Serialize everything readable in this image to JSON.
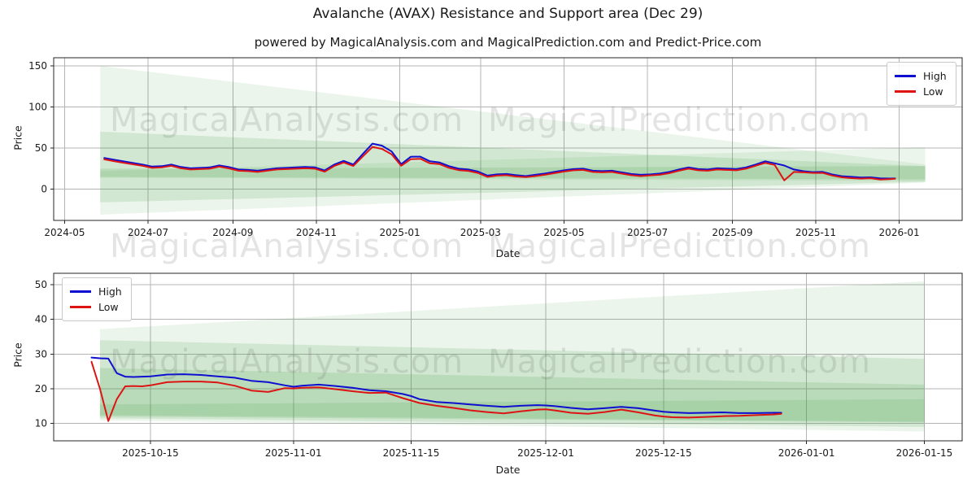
{
  "figure": {
    "title": "Avalanche (AVAX) Resistance and Support area (Dec 29)",
    "subtitle": "powered by MagicalAnalysis.com and MagicalPrediction.com and Predict-Price.com"
  },
  "legend": {
    "high": "High",
    "low": "Low"
  },
  "watermarks": {
    "left": "MagicalAnalysis.com",
    "right": "MagicalPrediction.com"
  },
  "colors": {
    "high": "#0f0fd0",
    "low": "#dd1414",
    "band": "#3a9a3a",
    "grid": "#b4b4b4",
    "spine": "#262626",
    "text": "#1a1a1a"
  },
  "chart_data": [
    {
      "type": "line",
      "name": "overview",
      "xlabel": "Date",
      "ylabel": "Price",
      "x_epoch": "2024-05-01",
      "xlim": [
        -8,
        656
      ],
      "ylim": [
        -38,
        160
      ],
      "y_ticks": [
        0,
        50,
        100,
        150
      ],
      "x_ticks": [
        {
          "d": 0,
          "label": "2024-05"
        },
        {
          "d": 61,
          "label": "2024-07"
        },
        {
          "d": 123,
          "label": "2024-09"
        },
        {
          "d": 184,
          "label": "2024-11"
        },
        {
          "d": 245,
          "label": "2025-01"
        },
        {
          "d": 304,
          "label": "2025-03"
        },
        {
          "d": 365,
          "label": "2025-05"
        },
        {
          "d": 426,
          "label": "2025-07"
        },
        {
          "d": 488,
          "label": "2025-09"
        },
        {
          "d": 549,
          "label": "2025-11"
        },
        {
          "d": 610,
          "label": "2026-01"
        }
      ],
      "legend_pos": "upper-right",
      "grid": true,
      "days": [
        29,
        36,
        43,
        50,
        57,
        64,
        71,
        78,
        85,
        92,
        99,
        106,
        113,
        120,
        127,
        134,
        141,
        148,
        155,
        162,
        169,
        176,
        183,
        190,
        197,
        204,
        211,
        218,
        225,
        232,
        239,
        246,
        253,
        260,
        267,
        274,
        281,
        288,
        295,
        302,
        309,
        316,
        323,
        330,
        337,
        344,
        351,
        358,
        365,
        372,
        379,
        386,
        393,
        400,
        407,
        414,
        421,
        428,
        435,
        442,
        449,
        456,
        463,
        470,
        477,
        484,
        491,
        498,
        505,
        512,
        519,
        526,
        533,
        540,
        547,
        554,
        561,
        568,
        575,
        582,
        589,
        596,
        603,
        607
      ],
      "series": [
        {
          "name": "High",
          "color_key": "high",
          "values": [
            38.0,
            36.0,
            34.0,
            32.0,
            30.0,
            27.5,
            28.0,
            30.0,
            27.0,
            25.5,
            26.0,
            26.5,
            29.0,
            27.0,
            24.0,
            23.5,
            22.5,
            24.0,
            25.5,
            26.0,
            26.5,
            27.0,
            26.5,
            22.8,
            30.0,
            34.5,
            30.0,
            43.0,
            55.5,
            53.0,
            46.0,
            30.5,
            39.5,
            39.6,
            34.0,
            32.5,
            28.0,
            25.0,
            24.0,
            21.5,
            16.5,
            18.0,
            18.5,
            17.0,
            16.0,
            17.5,
            19.0,
            21.0,
            23.0,
            24.5,
            25.0,
            22.5,
            22.0,
            22.5,
            20.5,
            18.5,
            17.5,
            18.0,
            19.0,
            21.0,
            24.0,
            26.5,
            24.5,
            24.0,
            25.5,
            25.0,
            24.5,
            26.5,
            30.0,
            34.0,
            31.5,
            28.8,
            24.0,
            21.9,
            20.8,
            21.1,
            17.9,
            15.9,
            15.1,
            14.2,
            14.5,
            13.2,
            13.0,
            13.1
          ]
        },
        {
          "name": "Low",
          "color_key": "low",
          "values": [
            36.3,
            34.2,
            32.2,
            30.3,
            28.4,
            26.0,
            26.5,
            28.4,
            25.5,
            24.0,
            24.5,
            25.0,
            27.4,
            25.4,
            22.5,
            22.0,
            21.0,
            22.5,
            24.0,
            24.5,
            25.0,
            25.5,
            25.0,
            21.3,
            28.2,
            32.5,
            28.2,
            40.0,
            51.5,
            49.0,
            42.5,
            28.5,
            36.5,
            37.0,
            31.5,
            30.5,
            26.0,
            23.2,
            22.3,
            19.8,
            15.0,
            16.5,
            17.0,
            15.5,
            14.8,
            16.0,
            17.5,
            19.5,
            21.5,
            23.0,
            23.5,
            21.0,
            20.5,
            21.0,
            19.0,
            17.0,
            16.0,
            16.8,
            17.5,
            19.5,
            22.5,
            25.0,
            23.0,
            22.5,
            24.0,
            23.5,
            23.0,
            25.0,
            28.5,
            32.0,
            29.5,
            10.7,
            21.0,
            20.5,
            19.8,
            19.9,
            16.6,
            14.5,
            13.5,
            12.9,
            13.4,
            11.8,
            12.2,
            12.8
          ]
        }
      ],
      "bands": [
        {
          "alpha": 0.1,
          "points": [
            [
              26,
              150
            ],
            [
              629,
              30
            ],
            [
              629,
              8
            ],
            [
              26,
              -31
            ]
          ]
        },
        {
          "alpha": 0.15,
          "points": [
            [
              26,
              70
            ],
            [
              629,
              28
            ],
            [
              629,
              9
            ],
            [
              26,
              -16
            ]
          ]
        },
        {
          "alpha": 0.1,
          "points": [
            [
              26,
              22
            ],
            [
              629,
              51
            ],
            [
              629,
              10
            ],
            [
              26,
              14
            ]
          ]
        },
        {
          "alpha": 0.15,
          "points": [
            [
              26,
              25
            ],
            [
              629,
              28
            ],
            [
              629,
              12
            ],
            [
              26,
              15
            ]
          ]
        }
      ]
    },
    {
      "type": "line",
      "name": "recent-detail",
      "xlabel": "Date",
      "ylabel": "Price",
      "x_epoch": "2025-10-08",
      "xlim": [
        -4.5,
        103.5
      ],
      "ylim": [
        5,
        53.3
      ],
      "y_ticks": [
        10,
        20,
        30,
        40,
        50
      ],
      "x_ticks": [
        {
          "d": 7,
          "label": "2025-10-15"
        },
        {
          "d": 24,
          "label": "2025-11-01"
        },
        {
          "d": 38,
          "label": "2025-11-15"
        },
        {
          "d": 54,
          "label": "2025-12-01"
        },
        {
          "d": 68,
          "label": "2025-12-15"
        },
        {
          "d": 85,
          "label": "2026-01-01"
        },
        {
          "d": 99,
          "label": "2026-01-15"
        }
      ],
      "legend_pos": "upper-left",
      "grid": true,
      "days": [
        0,
        1,
        2,
        3,
        4,
        5,
        6,
        7,
        9,
        11,
        13,
        15,
        17,
        19,
        21,
        23,
        24,
        25,
        27,
        29,
        31,
        33,
        35,
        37,
        38,
        39,
        41,
        43,
        45,
        47,
        49,
        51,
        53,
        54,
        55,
        57,
        59,
        61,
        63,
        65,
        67,
        68,
        69,
        71,
        73,
        75,
        77,
        79,
        81,
        82
      ],
      "series": [
        {
          "name": "High",
          "color_key": "high",
          "values": [
            29.0,
            28.8,
            28.7,
            24.5,
            23.5,
            23.4,
            23.5,
            23.6,
            24.1,
            24.2,
            24.0,
            23.6,
            23.2,
            22.3,
            21.9,
            21.0,
            20.6,
            20.9,
            21.2,
            20.8,
            20.3,
            19.6,
            19.3,
            18.5,
            17.9,
            17.0,
            16.2,
            15.9,
            15.5,
            15.1,
            14.8,
            15.1,
            15.3,
            15.2,
            15.0,
            14.5,
            14.1,
            14.4,
            14.8,
            14.4,
            13.7,
            13.4,
            13.2,
            13.0,
            13.1,
            13.2,
            13.0,
            13.0,
            13.1,
            13.1
          ]
        },
        {
          "name": "Low",
          "color_key": "low",
          "values": [
            27.8,
            20.0,
            10.7,
            17.0,
            20.7,
            20.8,
            20.7,
            21.0,
            21.9,
            22.1,
            22.1,
            21.8,
            20.9,
            19.5,
            19.1,
            20.2,
            20.1,
            20.3,
            20.4,
            19.9,
            19.3,
            18.8,
            18.9,
            17.3,
            16.6,
            15.9,
            15.1,
            14.5,
            13.8,
            13.3,
            12.9,
            13.5,
            14.0,
            14.1,
            13.8,
            13.1,
            12.8,
            13.3,
            14.0,
            13.2,
            12.3,
            12.0,
            11.8,
            11.7,
            11.9,
            12.1,
            12.2,
            12.4,
            12.6,
            12.8
          ]
        }
      ],
      "bands": [
        {
          "alpha": 0.1,
          "points": [
            [
              1,
              37.2
            ],
            [
              99,
              51
            ],
            [
              99,
              7.7
            ],
            [
              1,
              10.9
            ]
          ]
        },
        {
          "alpha": 0.15,
          "points": [
            [
              1,
              34
            ],
            [
              99,
              28.6
            ],
            [
              99,
              9
            ],
            [
              1,
              11.5
            ]
          ]
        },
        {
          "alpha": 0.15,
          "points": [
            [
              1,
              26
            ],
            [
              99,
              21.2
            ],
            [
              99,
              10.5
            ],
            [
              1,
              12.4
            ]
          ]
        },
        {
          "alpha": 0.15,
          "points": [
            [
              1,
              15.5
            ],
            [
              99,
              17
            ],
            [
              99,
              10.3
            ],
            [
              1,
              12
            ]
          ]
        }
      ]
    }
  ]
}
